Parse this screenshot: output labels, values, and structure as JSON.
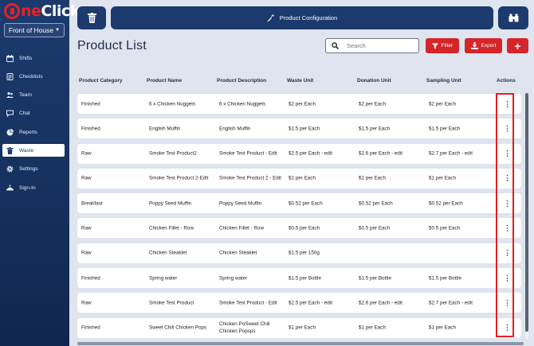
{
  "brand": {
    "logo_red": "ne",
    "logo_white": "Click",
    "site": "Front of House"
  },
  "nav": [
    {
      "label": "Shifts",
      "icon": "calendar-icon",
      "active": false
    },
    {
      "label": "Checklists",
      "icon": "checklist-icon",
      "active": false
    },
    {
      "label": "Team",
      "icon": "team-icon",
      "active": false
    },
    {
      "label": "Chat",
      "icon": "chat-icon",
      "active": false
    },
    {
      "label": "Reports",
      "icon": "pie-chart-icon",
      "active": false
    },
    {
      "label": "Waste",
      "icon": "trash-icon",
      "active": true
    },
    {
      "label": "Settings",
      "icon": "gear-icon",
      "active": false
    },
    {
      "label": "Sign-In",
      "icon": "sign-in-icon",
      "active": false
    }
  ],
  "topbar": {
    "config_label": "Product Configuration"
  },
  "page": {
    "title": "Product List"
  },
  "search": {
    "placeholder": "Search",
    "value": ""
  },
  "toolbar": {
    "filter_label": "Filter",
    "export_label": "Export",
    "add_label": "+"
  },
  "table": {
    "headers": [
      "Product Category",
      "Product Name",
      "Product Description",
      "Waste Unit",
      "Donation Unit",
      "Sampling Unit",
      "Actions"
    ],
    "rows": [
      [
        "Finished",
        "6 x Chicken Nuggets",
        "6 x Chicken Nuggets",
        "$2 per Each",
        "$2 per Each",
        "$2 per Each"
      ],
      [
        "Finished",
        "English Muffin",
        "English Muffin",
        "$1.5 per Each",
        "$1.5 per Each",
        "$1.5 per Each"
      ],
      [
        "Raw",
        "Smoke Test Product2",
        "Smoke Test Product - Edit",
        "$2.5 per Each - edit",
        "$2.6 per Each - edit",
        "$2.7 per Each - edit"
      ],
      [
        "Raw",
        "Smoke Test Product 2-Edit",
        "Smoke Test Product 2 - Edit",
        "$1 per Each",
        "$1 per Each",
        "$1 per Each"
      ],
      [
        "Breakfast",
        "Poppy Seed Muffin",
        "Poppy Seed Muffin",
        "$0.52 per Each",
        "$0.52 per Each",
        "$0.52 per Each"
      ],
      [
        "Raw",
        "Chicken Fillet - Row",
        "Chicken Fillet - Row",
        "$0.5 per Each",
        "$0.5 per Each",
        "$0.5 per Each"
      ],
      [
        "Raw",
        "Chicken Steaklet",
        "Chicken Steaklet",
        "$1.5 per 150g",
        "",
        ""
      ],
      [
        "Finished",
        "Spring water",
        "Spring water",
        "$1.5 per Bottle",
        "$1.5 per Bottle",
        "$1.5 per Bottle"
      ],
      [
        "Raw",
        "Smoke Test Product",
        "Smoke Test Product - Edit",
        "$2.5 per Each - edit",
        "$2.6 per Each - edit",
        "$2.7 per Each - edit"
      ],
      [
        "Finished",
        "Sweet Chili Chicken Pops",
        "Chicken PoSweet Chili Chicken Popsps",
        "$1 per Each",
        "$1 per Each",
        "$1 per Each"
      ]
    ],
    "action_glyph": "⋮"
  },
  "colors": {
    "navy": "#1c3a6e",
    "red": "#d4252b",
    "background": "#dfe4ee",
    "highlight": "#e21f26"
  }
}
